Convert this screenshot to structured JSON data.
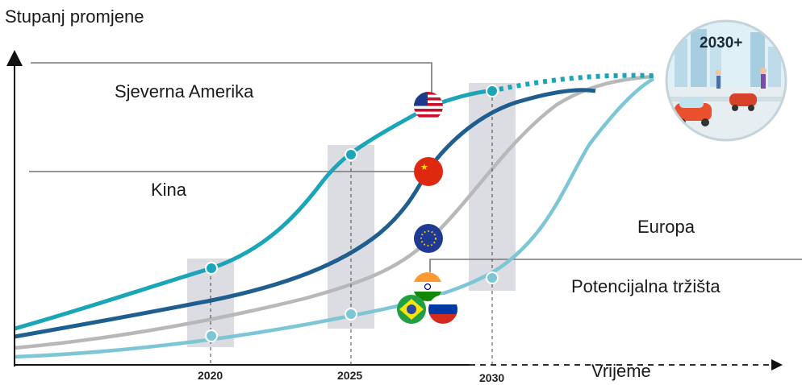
{
  "y_axis_label": "Stupanj promjene",
  "x_axis_label": "Vrijeme",
  "years": [
    "2020",
    "2025",
    "2030"
  ],
  "future_label": "2030+",
  "regions": {
    "north_america": "Sjeverna Amerika",
    "china": "Kina",
    "europe": "Europa",
    "potential": "Potencijalna tržišta"
  },
  "flags": [
    "usa-flag",
    "china-flag",
    "eu-flag",
    "india-flag",
    "brazil-flag",
    "russia-flag"
  ],
  "colors": {
    "north_america": "#1aa5b8",
    "china": "#1f5f8f",
    "europe": "#b8b8b8",
    "potential": "#7cc6d6",
    "year_band": "#dcdde2",
    "leader_line": "#777777"
  }
}
